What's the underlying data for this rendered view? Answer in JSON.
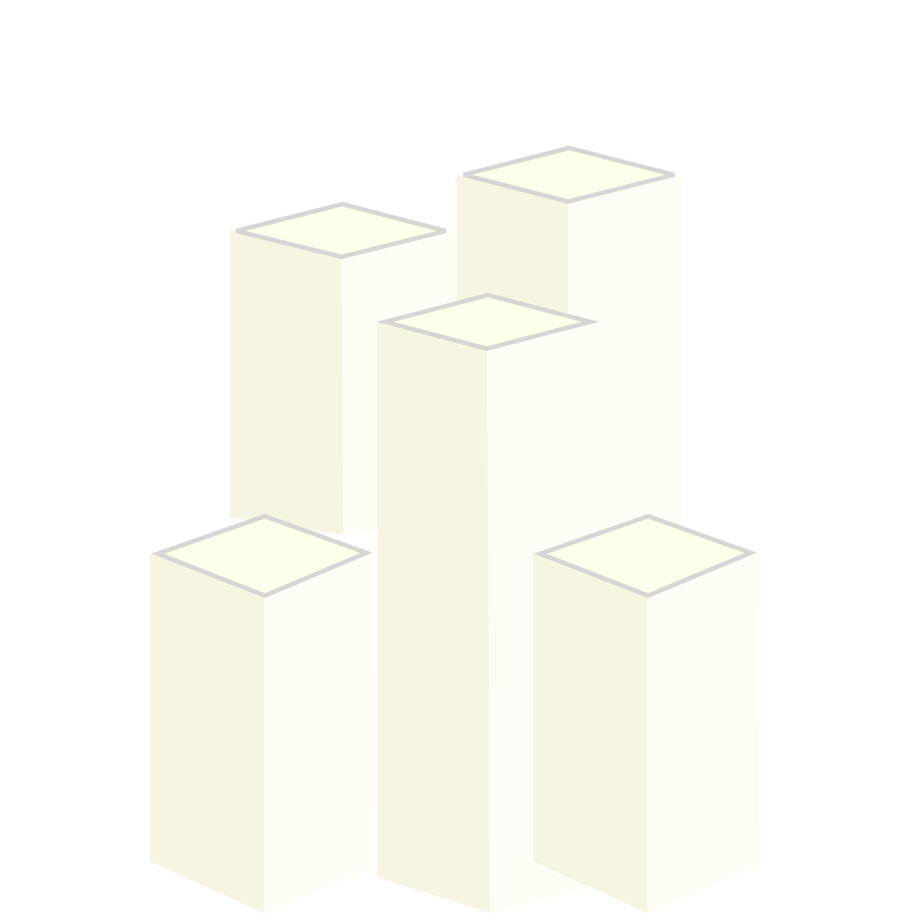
{
  "scene": {
    "background": "#ffffff",
    "face_colors": {
      "top_fill": "#fffeea",
      "top_stroke": "#d8d6d4",
      "left_face": "#f8f4e2",
      "right_face": "#fefcf4"
    },
    "pillar_count": 5
  }
}
